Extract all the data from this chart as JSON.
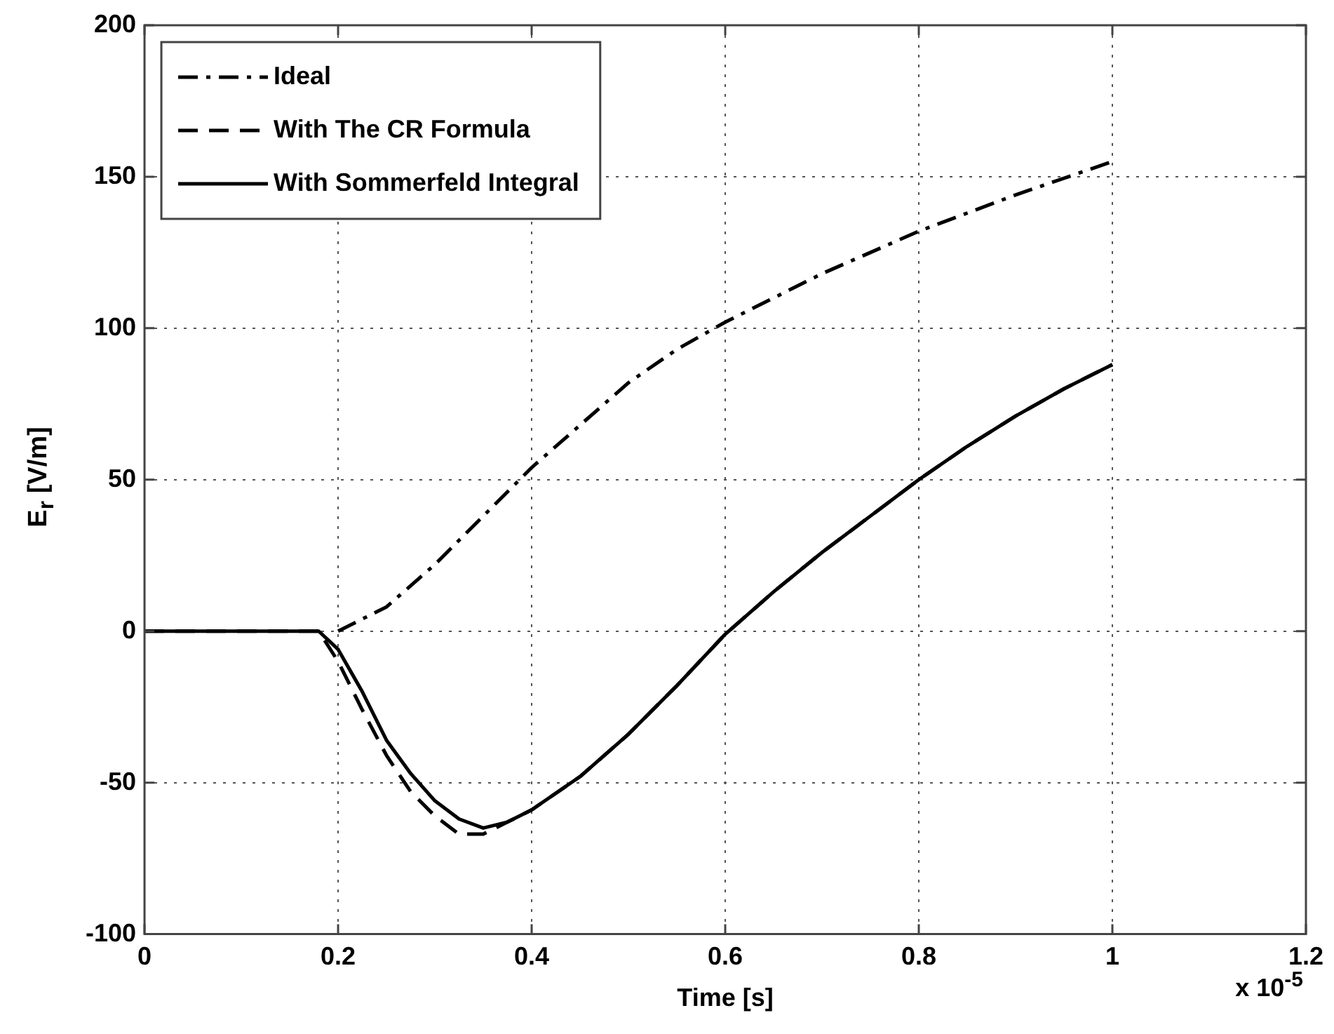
{
  "chart_data": {
    "type": "line",
    "xlabel": "Time [s]",
    "ylabel": "E$_{r}$ [V/m]",
    "annotations": [
      "x 10$^{-5}$"
    ],
    "xlim": [
      0,
      1.2
    ],
    "xticks": [
      0,
      0.2,
      0.4,
      0.6,
      0.8,
      1,
      1.2
    ],
    "ylim": [
      -100,
      200
    ],
    "yticks": [
      -100,
      -50,
      0,
      50,
      100,
      150,
      200
    ],
    "grid": true,
    "legend": "top left",
    "marker": "none",
    "series": [
      {
        "name": "Ideal",
        "color": "#000000",
        "line_style": "dashdot",
        "x": [
          0.2,
          0.25,
          0.3,
          0.35,
          0.4,
          0.45,
          0.5,
          0.55,
          0.6,
          0.7,
          0.8,
          0.9,
          1.0
        ],
        "values": [
          0,
          8,
          22,
          38,
          54,
          68,
          82,
          93,
          102,
          118,
          132,
          144,
          155
        ]
      },
      {
        "name": "With The CR Formula",
        "color": "#000000",
        "line_style": "dashed",
        "x": [
          0,
          0.18,
          0.2,
          0.225,
          0.25,
          0.275,
          0.3,
          0.325,
          0.35,
          0.375,
          0.4,
          0.45,
          0.5,
          0.55,
          0.6,
          0.65,
          0.7,
          0.75,
          0.8,
          0.85,
          0.9,
          0.95,
          1.0
        ],
        "values": [
          0,
          0,
          -10,
          -26,
          -41,
          -53,
          -61,
          -67,
          -67,
          -63,
          -59,
          -48,
          -34,
          -18,
          -1,
          13,
          26,
          38,
          50,
          61,
          71,
          80,
          88
        ]
      },
      {
        "name": "With Sommerfeld Integral",
        "color": "#000000",
        "line_style": "solid",
        "x": [
          0,
          0.18,
          0.2,
          0.225,
          0.25,
          0.275,
          0.3,
          0.325,
          0.35,
          0.375,
          0.4,
          0.45,
          0.5,
          0.55,
          0.6,
          0.65,
          0.7,
          0.75,
          0.8,
          0.85,
          0.9,
          0.95,
          1.0
        ],
        "values": [
          0,
          0,
          -6,
          -20,
          -36,
          -47,
          -56,
          -62,
          -65,
          -63,
          -59,
          -48,
          -34,
          -18,
          -1,
          13,
          26,
          38,
          50,
          61,
          71,
          80,
          88
        ]
      }
    ]
  }
}
